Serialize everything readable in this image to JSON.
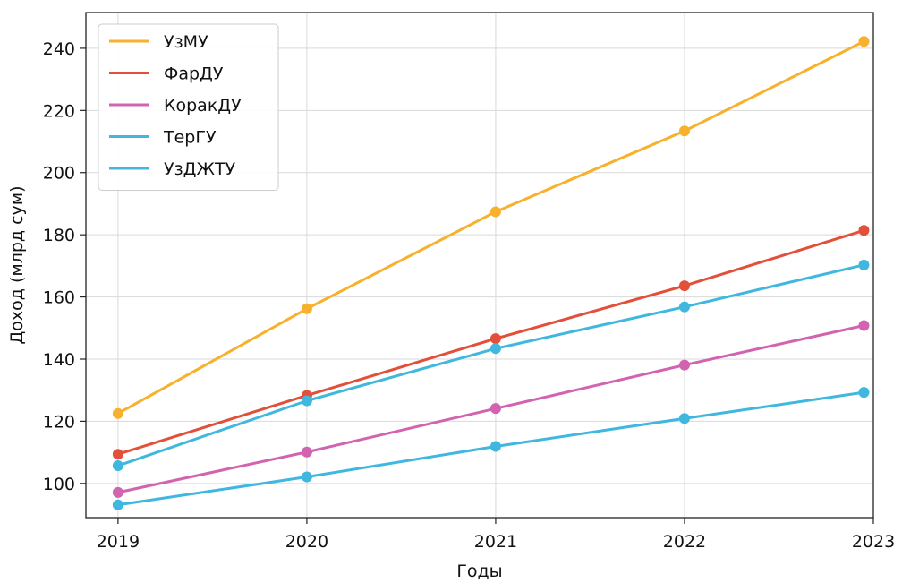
{
  "chart_data": {
    "type": "line",
    "xlabel": "Годы",
    "ylabel": "Доход (млрд сум)",
    "categories": [
      "2019",
      "2020",
      "2021",
      "2022",
      "2023"
    ],
    "x": [
      2019,
      2020,
      2021,
      2022,
      2023
    ],
    "xlim": [
      2018.83,
      2023.0
    ],
    "ylim": [
      89,
      251.5
    ],
    "yticks": [
      100,
      120,
      140,
      160,
      180,
      200,
      220,
      240
    ],
    "grid": true,
    "legend_position": "top-left",
    "series": [
      {
        "name": "УзМУ",
        "color": "#f8b12c",
        "x": [
          2019,
          2020,
          2021,
          2022,
          2022.95
        ],
        "values": [
          122.5,
          156.2,
          187.4,
          213.4,
          242.2
        ]
      },
      {
        "name": "ФарДУ",
        "color": "#e2503a",
        "x": [
          2019,
          2020,
          2021,
          2022,
          2022.95
        ],
        "values": [
          109.4,
          128.3,
          146.6,
          163.6,
          181.4
        ]
      },
      {
        "name": "КоракДУ",
        "color": "#d163b0",
        "x": [
          2019,
          2020,
          2021,
          2022,
          2022.95
        ],
        "values": [
          97.1,
          110.1,
          124.1,
          138.1,
          150.8
        ]
      },
      {
        "name": "ТерГУ",
        "color": "#40b7df",
        "x": [
          2019,
          2020,
          2021,
          2022,
          2022.95
        ],
        "values": [
          105.7,
          126.6,
          143.4,
          156.8,
          170.3
        ]
      },
      {
        "name": "УзДЖТУ",
        "color": "#40b7df",
        "x": [
          2019,
          2020,
          2021,
          2022,
          2022.95
        ],
        "values": [
          93.1,
          102.1,
          111.9,
          120.9,
          129.3
        ]
      }
    ]
  }
}
